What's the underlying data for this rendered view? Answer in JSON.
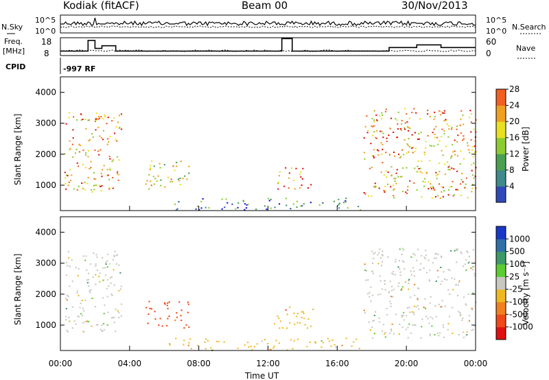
{
  "header": {
    "station": "Kodiak (fitACF)",
    "beam": "Beam 00",
    "date": "30/Nov/2013"
  },
  "panels": {
    "nsky": {
      "left_label": "N.Sky",
      "right_label": "N.Search",
      "left_ticks": [
        "10^5",
        "10^0"
      ],
      "right_ticks": [
        "10^5",
        "10^0"
      ]
    },
    "freq": {
      "left_label_1": "Freq.",
      "left_label_2": "[MHz]",
      "right_label": "Nave",
      "left_ticks": [
        "18",
        "8"
      ],
      "right_ticks": [
        "60",
        "0"
      ]
    },
    "cpid": {
      "label": "CPID",
      "value": "-997 RF"
    }
  },
  "chart_data": [
    {
      "type": "line",
      "title": "Freq. [MHz] / Nave",
      "x_label": "Time UT",
      "x_hours": [
        0,
        1.6,
        1.6,
        2.0,
        2.0,
        2.4,
        2.4,
        3.2,
        3.2,
        12.8,
        12.8,
        13.4,
        13.4,
        19.0,
        19.0,
        20.6,
        20.6,
        22.0,
        22.0,
        24.0
      ],
      "freq_mhz": [
        10.5,
        10.5,
        16.5,
        16.5,
        12,
        12,
        13.5,
        13.5,
        10.5,
        10.5,
        17.5,
        17.5,
        10.5,
        10.5,
        12.5,
        12.5,
        14,
        14,
        12.5,
        12.5
      ],
      "ylim_left": [
        8,
        18
      ],
      "ylim_right": [
        0,
        60
      ]
    },
    {
      "type": "heatmap",
      "title": "Power [dB]",
      "ylabel": "Slant Range [km]",
      "xlabel": "Time UT",
      "xlim_hours": [
        0,
        24
      ],
      "ylim_km": [
        180,
        4500
      ],
      "colorbar_label": "Power [dB]",
      "colorbar_ticks": [
        "4",
        "8",
        "12",
        "16",
        "20",
        "24",
        "28"
      ],
      "colorbar_colors": [
        "#1010d8",
        "#2f4ab8",
        "#3f8a8a",
        "#4aa050",
        "#8ccc30",
        "#e8e020",
        "#f0a020",
        "#f06020",
        "#e01010"
      ],
      "regions": [
        {
          "t0": 0.2,
          "t1": 3.5,
          "r0": 800,
          "r1": 3400,
          "core_power": 24
        },
        {
          "t0": 4.8,
          "t1": 7.4,
          "r0": 900,
          "r1": 1800,
          "core_power": 20
        },
        {
          "t0": 12.3,
          "t1": 14.6,
          "r0": 900,
          "r1": 1600,
          "core_power": 26
        },
        {
          "t0": 17.5,
          "t1": 24.0,
          "r0": 600,
          "r1": 3500,
          "core_power": 24
        },
        {
          "t0": 6.0,
          "t1": 17.5,
          "r0": 200,
          "r1": 600,
          "core_power": 8
        }
      ]
    },
    {
      "type": "heatmap",
      "title": "Velocity [m s-1]",
      "ylabel": "Slant Range [km]",
      "xlabel": "Time UT",
      "xlim_hours": [
        0,
        24
      ],
      "ylim_km": [
        180,
        4500
      ],
      "colorbar_label": "Velocity [m s⁻¹]",
      "colorbar_ticks": [
        "1000",
        "500",
        "100",
        "25",
        "-25",
        "-100",
        "-500",
        "-1000"
      ],
      "colorbar_colors": [
        "#1a38c8",
        "#2f70a8",
        "#3c9a68",
        "#5ccc30",
        "#c8c8c0",
        "#f0b820",
        "#f08020",
        "#f04818",
        "#e01010"
      ],
      "regions": [
        {
          "t0": 0.2,
          "t1": 3.5,
          "r0": 800,
          "r1": 3400,
          "dominant": "25"
        },
        {
          "t0": 4.8,
          "t1": 7.4,
          "r0": 900,
          "r1": 1800,
          "dominant": "-500"
        },
        {
          "t0": 12.3,
          "t1": 14.6,
          "r0": 900,
          "r1": 1600,
          "dominant": "-100"
        },
        {
          "t0": 17.5,
          "t1": 24.0,
          "r0": 600,
          "r1": 3500,
          "dominant": "25"
        },
        {
          "t0": 6.0,
          "t1": 17.5,
          "r0": 200,
          "r1": 600,
          "dominant": "-100"
        }
      ]
    }
  ],
  "axes": {
    "range_ticks": [
      "1000",
      "2000",
      "3000",
      "4000"
    ],
    "range_values_km": [
      1000,
      2000,
      3000,
      4000
    ],
    "time_ticks": [
      "00:00",
      "04:00",
      "08:00",
      "12:00",
      "16:00",
      "20:00",
      "00:00"
    ],
    "time_hours": [
      0,
      4,
      8,
      12,
      16,
      20,
      24
    ],
    "ylabel": "Slant Range [km]",
    "xlabel": "Time UT"
  }
}
